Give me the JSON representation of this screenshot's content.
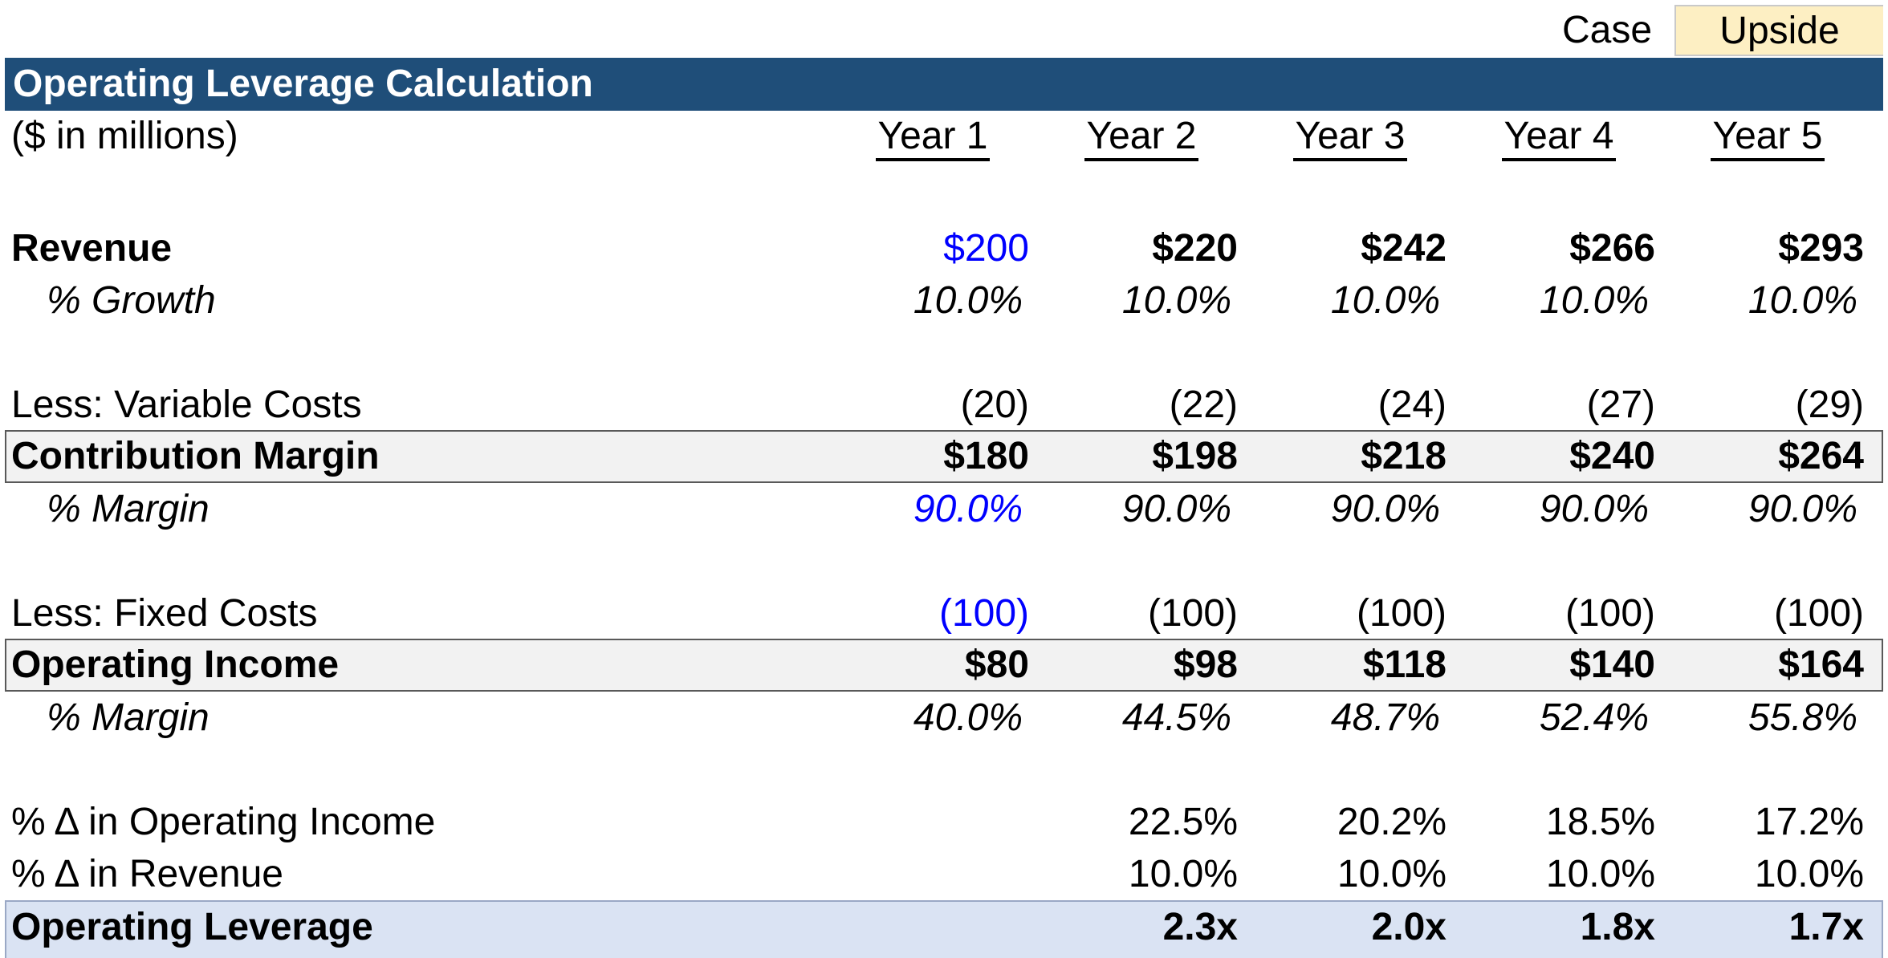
{
  "case": {
    "label": "Case",
    "value": "Upside"
  },
  "title": "Operating Leverage Calculation",
  "units": "($ in millions)",
  "years": [
    "Year 1",
    "Year 2",
    "Year 3",
    "Year 4",
    "Year 5"
  ],
  "rows": {
    "revenue": {
      "label": "Revenue",
      "values": [
        "$200",
        "$220",
        "$242",
        "$266",
        "$293"
      ]
    },
    "growth": {
      "label": "% Growth",
      "values": [
        "10.0%",
        "10.0%",
        "10.0%",
        "10.0%",
        "10.0%"
      ]
    },
    "variable_costs": {
      "label": "Less: Variable Costs",
      "values": [
        "(20)",
        "(22)",
        "(24)",
        "(27)",
        "(29)"
      ]
    },
    "contribution_margin": {
      "label": "Contribution Margin",
      "values": [
        "$180",
        "$198",
        "$218",
        "$240",
        "$264"
      ]
    },
    "cm_margin": {
      "label": "% Margin",
      "values": [
        "90.0%",
        "90.0%",
        "90.0%",
        "90.0%",
        "90.0%"
      ]
    },
    "fixed_costs": {
      "label": "Less: Fixed Costs",
      "values": [
        "(100)",
        "(100)",
        "(100)",
        "(100)",
        "(100)"
      ]
    },
    "operating_income": {
      "label": "Operating Income",
      "values": [
        "$80",
        "$98",
        "$118",
        "$140",
        "$164"
      ]
    },
    "oi_margin": {
      "label": "% Margin",
      "values": [
        "40.0%",
        "44.5%",
        "48.7%",
        "52.4%",
        "55.8%"
      ]
    },
    "delta_oi": {
      "label": "% Δ in Operating Income",
      "values": [
        "",
        "22.5%",
        "20.2%",
        "18.5%",
        "17.2%"
      ]
    },
    "delta_revenue": {
      "label": "% Δ in Revenue",
      "values": [
        "",
        "10.0%",
        "10.0%",
        "10.0%",
        "10.0%"
      ]
    },
    "operating_leverage": {
      "label": "Operating Leverage",
      "values": [
        "",
        "2.3x",
        "2.0x",
        "1.8x",
        "1.7x"
      ]
    }
  },
  "colors": {
    "title_bar": "#1f4e79",
    "input_text": "#0000ff",
    "case_fill": "#fdefc3",
    "subtotal_fill": "#f2f2f2",
    "leverage_fill": "#dae3f3"
  }
}
